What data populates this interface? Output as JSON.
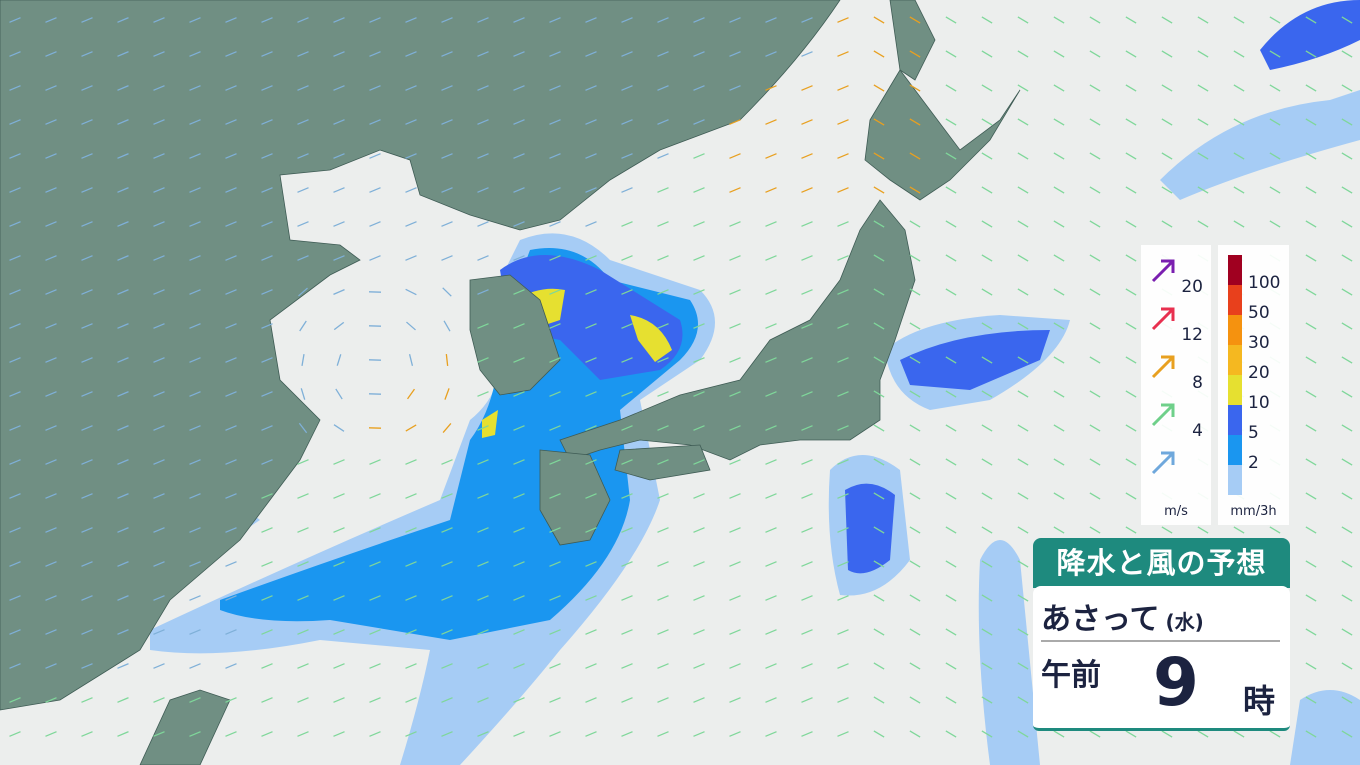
{
  "title": "降水と風の予想",
  "forecast_day": "あさって",
  "weekday": "(水)",
  "ampm": "午前",
  "hour": "9",
  "hour_suffix": "時",
  "wind_legend": {
    "unit": "m/s",
    "items": [
      {
        "value": "20",
        "color": "#7a1fb0"
      },
      {
        "value": "12",
        "color": "#e8304f"
      },
      {
        "value": "8",
        "color": "#e8a020"
      },
      {
        "value": "4",
        "color": "#6fd08a"
      },
      {
        "value": "",
        "color": "#6fa8dc"
      }
    ]
  },
  "rain_legend": {
    "unit": "mm/3h",
    "items": [
      {
        "value": "100",
        "color": "#a00020"
      },
      {
        "value": "50",
        "color": "#e8401c"
      },
      {
        "value": "30",
        "color": "#f5920f"
      },
      {
        "value": "20",
        "color": "#f5b820"
      },
      {
        "value": "10",
        "color": "#e6e030"
      },
      {
        "value": "5",
        "color": "#3a66ee"
      },
      {
        "value": "2",
        "color": "#1a96f0"
      },
      {
        "value": "",
        "color": "#a6ccf5"
      }
    ]
  },
  "colors": {
    "land": "#708f83",
    "ocean": "#eceeed",
    "accent": "#1e8a7e"
  }
}
